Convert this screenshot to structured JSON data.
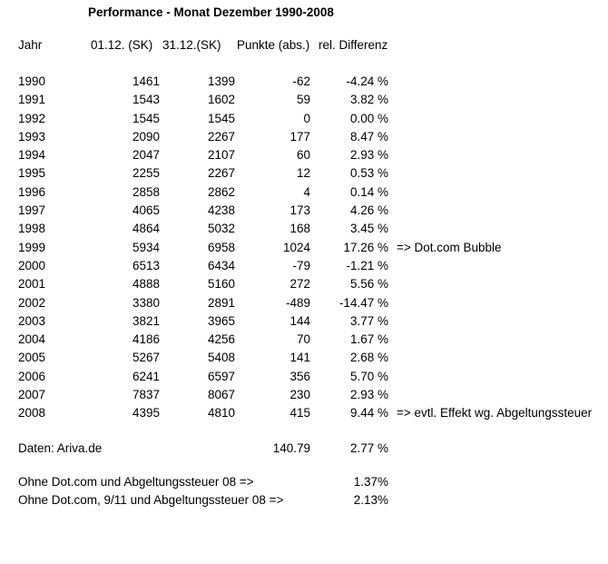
{
  "title": "Performance - Monat Dezember 1990-2008",
  "table": {
    "columns": [
      "Jahr",
      "01.12. (SK)",
      "31.12.(SK)",
      "Punkte (abs.)",
      "rel. Differenz"
    ],
    "rows": [
      {
        "jahr": "1990",
        "sk_start": "1461",
        "sk_end": "1399",
        "punkte": "-62",
        "diff": "-4.24 %",
        "note": ""
      },
      {
        "jahr": "1991",
        "sk_start": "1543",
        "sk_end": "1602",
        "punkte": "59",
        "diff": "3.82 %",
        "note": ""
      },
      {
        "jahr": "1992",
        "sk_start": "1545",
        "sk_end": "1545",
        "punkte": "0",
        "diff": "0.00 %",
        "note": ""
      },
      {
        "jahr": "1993",
        "sk_start": "2090",
        "sk_end": "2267",
        "punkte": "177",
        "diff": "8.47 %",
        "note": ""
      },
      {
        "jahr": "1994",
        "sk_start": "2047",
        "sk_end": "2107",
        "punkte": "60",
        "diff": "2.93 %",
        "note": ""
      },
      {
        "jahr": "1995",
        "sk_start": "2255",
        "sk_end": "2267",
        "punkte": "12",
        "diff": "0.53 %",
        "note": ""
      },
      {
        "jahr": "1996",
        "sk_start": "2858",
        "sk_end": "2862",
        "punkte": "4",
        "diff": "0.14 %",
        "note": ""
      },
      {
        "jahr": "1997",
        "sk_start": "4065",
        "sk_end": "4238",
        "punkte": "173",
        "diff": "4.26 %",
        "note": ""
      },
      {
        "jahr": "1998",
        "sk_start": "4864",
        "sk_end": "5032",
        "punkte": "168",
        "diff": "3.45 %",
        "note": ""
      },
      {
        "jahr": "1999",
        "sk_start": "5934",
        "sk_end": "6958",
        "punkte": "1024",
        "diff": "17.26 %",
        "note": "=> Dot.com Bubble"
      },
      {
        "jahr": "2000",
        "sk_start": "6513",
        "sk_end": "6434",
        "punkte": "-79",
        "diff": "-1.21 %",
        "note": ""
      },
      {
        "jahr": "2001",
        "sk_start": "4888",
        "sk_end": "5160",
        "punkte": "272",
        "diff": "5.56 %",
        "note": ""
      },
      {
        "jahr": "2002",
        "sk_start": "3380",
        "sk_end": "2891",
        "punkte": "-489",
        "diff": "-14.47 %",
        "note": ""
      },
      {
        "jahr": "2003",
        "sk_start": "3821",
        "sk_end": "3965",
        "punkte": "144",
        "diff": "3.77 %",
        "note": ""
      },
      {
        "jahr": "2004",
        "sk_start": "4186",
        "sk_end": "4256",
        "punkte": "70",
        "diff": "1.67 %",
        "note": ""
      },
      {
        "jahr": "2005",
        "sk_start": "5267",
        "sk_end": "5408",
        "punkte": "141",
        "diff": "2.68 %",
        "note": ""
      },
      {
        "jahr": "2006",
        "sk_start": "6241",
        "sk_end": "6597",
        "punkte": "356",
        "diff": "5.70 %",
        "note": ""
      },
      {
        "jahr": "2007",
        "sk_start": "7837",
        "sk_end": "8067",
        "punkte": "230",
        "diff": "2.93 %",
        "note": ""
      },
      {
        "jahr": "2008",
        "sk_start": "4395",
        "sk_end": "4810",
        "punkte": "415",
        "diff": "9.44 %",
        "note": "=> evtl. Effekt wg. Abgeltungssteuer"
      }
    ]
  },
  "summary": {
    "source_label": "Daten: Ariva.de",
    "punkte_total": "140.79",
    "diff_average": "2.77 %",
    "adjusted": [
      {
        "label": "Ohne Dot.com und Abgeltungssteuer 08 =>",
        "value": "1.37%"
      },
      {
        "label": "Ohne Dot.com, 9/11 und Abgeltungssteuer 08 =>",
        "value": "2.13%"
      }
    ]
  }
}
